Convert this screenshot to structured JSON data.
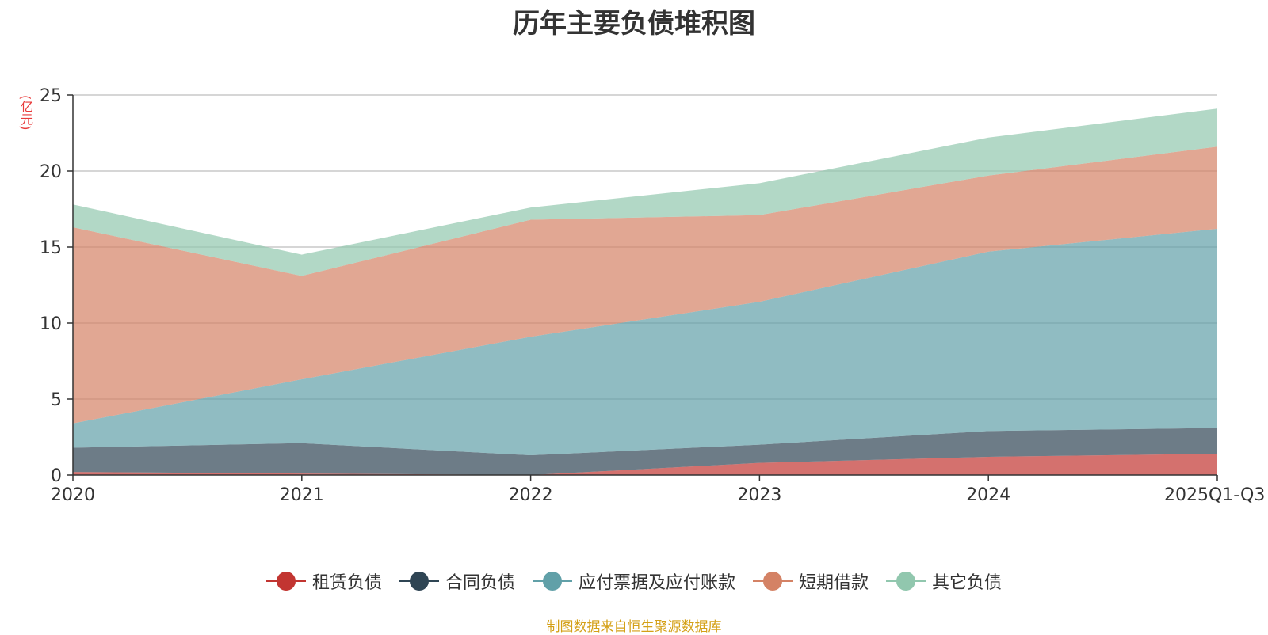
{
  "chart_data": {
    "type": "area",
    "stacked": true,
    "title": "历年主要负债堆积图",
    "unit_label": "(亿元)",
    "categories": [
      "2020",
      "2021",
      "2022",
      "2023",
      "2024",
      "2025Q1-Q3"
    ],
    "ylim": [
      0,
      25
    ],
    "yticks": [
      "0",
      "5",
      "10",
      "15",
      "20",
      "25"
    ],
    "grid": true,
    "series": [
      {
        "name": "租赁负债",
        "color": "#c23531",
        "values": [
          0.2,
          0.1,
          0.0,
          0.8,
          1.2,
          1.4
        ]
      },
      {
        "name": "合同负债",
        "color": "#2f4554",
        "values": [
          1.6,
          2.0,
          1.3,
          1.2,
          1.7,
          1.7
        ]
      },
      {
        "name": "应付票据及应付账款",
        "color": "#61a0a8",
        "values": [
          1.6,
          4.2,
          7.8,
          9.4,
          11.8,
          13.1
        ]
      },
      {
        "name": "短期借款",
        "color": "#d48265",
        "values": [
          12.9,
          6.8,
          7.7,
          5.7,
          5.0,
          5.4
        ]
      },
      {
        "name": "其它负债",
        "color": "#91c7ae",
        "values": [
          1.5,
          1.4,
          0.8,
          2.1,
          2.5,
          2.5
        ]
      }
    ],
    "legend_position": "bottom-center",
    "source": "制图数据来自恒生聚源数据库"
  }
}
